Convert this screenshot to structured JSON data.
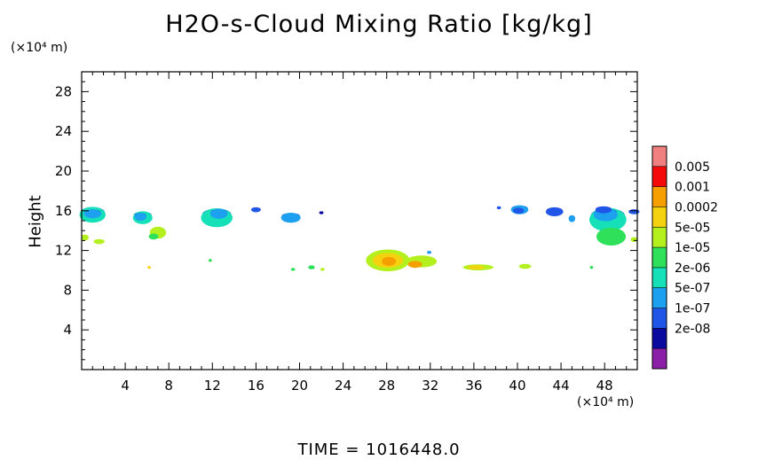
{
  "chart_data": {
    "type": "heatmap",
    "title": "H2O-s-Cloud Mixing Ratio [kg/kg]",
    "ylabel": "Height",
    "y_unit": "(×10⁴ m)",
    "x_unit": "(×10⁴ m)",
    "footer": "TIME  =  1016448.0",
    "xlim": [
      0,
      51
    ],
    "ylim": [
      0,
      30
    ],
    "xticks": [
      4,
      8,
      12,
      16,
      20,
      24,
      28,
      32,
      36,
      40,
      44,
      48
    ],
    "yticks": [
      4,
      8,
      12,
      16,
      20,
      24,
      28
    ],
    "legend": {
      "labels": [
        "0.005",
        "0.001",
        "0.0002",
        "5e-05",
        "1e-05",
        "2e-06",
        "5e-07",
        "1e-07",
        "2e-08"
      ],
      "colors": [
        "#8b1fa8",
        "#0a0aa0",
        "#1f56e8",
        "#1ea0f0",
        "#16e0b8",
        "#2ee05a",
        "#b4f01e",
        "#f5d210",
        "#f5a000",
        "#f50a0a",
        "#f08080"
      ]
    },
    "cloud_patches": [
      {
        "x": 1.0,
        "y": 15.6,
        "w": 2.4,
        "h": 1.6,
        "level": 4
      },
      {
        "x": 1.0,
        "y": 15.7,
        "w": 1.6,
        "h": 0.9,
        "level": 3
      },
      {
        "x": 0.3,
        "y": 13.3,
        "w": 0.7,
        "h": 0.6,
        "level": 6
      },
      {
        "x": 1.6,
        "y": 12.9,
        "w": 1.0,
        "h": 0.5,
        "level": 6
      },
      {
        "x": 5.6,
        "y": 15.3,
        "w": 1.8,
        "h": 1.3,
        "level": 4
      },
      {
        "x": 5.4,
        "y": 15.4,
        "w": 1.1,
        "h": 0.8,
        "level": 3
      },
      {
        "x": 7.0,
        "y": 13.8,
        "w": 1.5,
        "h": 1.2,
        "level": 6
      },
      {
        "x": 6.6,
        "y": 13.4,
        "w": 0.9,
        "h": 0.6,
        "level": 5
      },
      {
        "x": 12.4,
        "y": 15.3,
        "w": 2.9,
        "h": 1.9,
        "level": 4
      },
      {
        "x": 12.6,
        "y": 15.7,
        "w": 1.6,
        "h": 1.0,
        "level": 3
      },
      {
        "x": 16.0,
        "y": 16.1,
        "w": 0.9,
        "h": 0.5,
        "level": 2
      },
      {
        "x": 19.2,
        "y": 15.3,
        "w": 1.8,
        "h": 1.0,
        "level": 3
      },
      {
        "x": 22.0,
        "y": 15.8,
        "w": 0.4,
        "h": 0.3,
        "level": 1
      },
      {
        "x": 28.1,
        "y": 11.0,
        "w": 4.0,
        "h": 2.2,
        "level": 6
      },
      {
        "x": 28.1,
        "y": 11.0,
        "w": 2.8,
        "h": 1.5,
        "level": 7
      },
      {
        "x": 28.2,
        "y": 10.9,
        "w": 1.3,
        "h": 0.9,
        "level": 8
      },
      {
        "x": 31.2,
        "y": 10.9,
        "w": 2.8,
        "h": 1.2,
        "level": 6
      },
      {
        "x": 30.6,
        "y": 10.6,
        "w": 1.3,
        "h": 0.7,
        "level": 8
      },
      {
        "x": 31.9,
        "y": 11.8,
        "w": 0.4,
        "h": 0.3,
        "level": 3
      },
      {
        "x": 36.4,
        "y": 10.3,
        "w": 2.8,
        "h": 0.6,
        "level": 6
      },
      {
        "x": 36.2,
        "y": 10.3,
        "w": 1.5,
        "h": 0.4,
        "level": 7
      },
      {
        "x": 40.7,
        "y": 10.4,
        "w": 1.1,
        "h": 0.5,
        "level": 6
      },
      {
        "x": 21.1,
        "y": 10.3,
        "w": 0.6,
        "h": 0.4,
        "level": 5
      },
      {
        "x": 22.1,
        "y": 10.1,
        "w": 0.4,
        "h": 0.3,
        "level": 6
      },
      {
        "x": 19.4,
        "y": 10.1,
        "w": 0.4,
        "h": 0.3,
        "level": 5
      },
      {
        "x": 6.2,
        "y": 10.3,
        "w": 0.3,
        "h": 0.3,
        "level": 7
      },
      {
        "x": 11.8,
        "y": 11.0,
        "w": 0.3,
        "h": 0.3,
        "level": 5
      },
      {
        "x": 46.8,
        "y": 10.3,
        "w": 0.3,
        "h": 0.3,
        "level": 5
      },
      {
        "x": 40.2,
        "y": 16.1,
        "w": 1.6,
        "h": 0.9,
        "level": 3
      },
      {
        "x": 40.1,
        "y": 16.0,
        "w": 1.0,
        "h": 0.6,
        "level": 2
      },
      {
        "x": 38.3,
        "y": 16.3,
        "w": 0.4,
        "h": 0.3,
        "level": 2
      },
      {
        "x": 43.4,
        "y": 15.9,
        "w": 1.6,
        "h": 0.9,
        "level": 2
      },
      {
        "x": 45.0,
        "y": 15.2,
        "w": 0.6,
        "h": 0.7,
        "level": 3
      },
      {
        "x": 48.3,
        "y": 15.1,
        "w": 3.4,
        "h": 2.4,
        "level": 4
      },
      {
        "x": 48.1,
        "y": 15.6,
        "w": 2.2,
        "h": 1.3,
        "level": 3
      },
      {
        "x": 47.9,
        "y": 16.1,
        "w": 1.5,
        "h": 0.7,
        "level": 2
      },
      {
        "x": 48.6,
        "y": 13.4,
        "w": 2.7,
        "h": 1.8,
        "level": 5
      },
      {
        "x": 50.7,
        "y": 15.9,
        "w": 1.0,
        "h": 0.5,
        "level": 2
      },
      {
        "x": 50.7,
        "y": 13.1,
        "w": 0.6,
        "h": 0.5,
        "level": 6
      }
    ]
  }
}
